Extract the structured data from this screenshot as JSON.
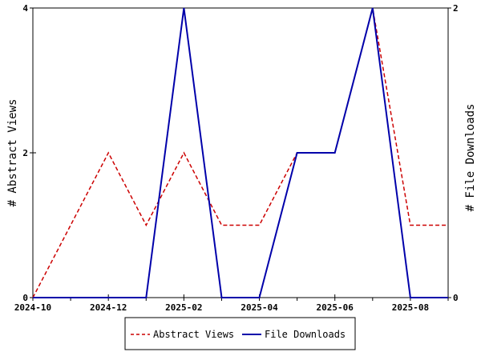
{
  "chart_data": {
    "type": "line",
    "x": [
      "2024-10",
      "2024-11",
      "2024-12",
      "2025-01",
      "2025-02",
      "2025-03",
      "2025-04",
      "2025-05",
      "2025-06",
      "2025-07",
      "2025-08",
      "2025-09"
    ],
    "x_tick_labels": [
      "2024-10",
      "2024-12",
      "2025-02",
      "2025-04",
      "2025-06",
      "2025-08"
    ],
    "series": [
      {
        "name": "Abstract Views",
        "axis": "left",
        "color": "#cc0000",
        "style": "dashed",
        "values": [
          0,
          1,
          2,
          1,
          2,
          1,
          1,
          2,
          2,
          4,
          1,
          1
        ]
      },
      {
        "name": "File Downloads",
        "axis": "right",
        "color": "#0000aa",
        "style": "solid",
        "values": [
          0,
          0,
          0,
          0,
          2,
          0,
          0,
          1,
          1,
          2,
          0,
          0
        ]
      }
    ],
    "ylabel_left": "# Abstract Views",
    "ylabel_right": "# File Downloads",
    "ylim_left": [
      0,
      4
    ],
    "ylim_right": [
      0,
      2
    ],
    "yticks_left": [
      0,
      2,
      4
    ],
    "yticks_right": [
      0,
      2
    ],
    "legend_position": "bottom",
    "grid": false
  }
}
